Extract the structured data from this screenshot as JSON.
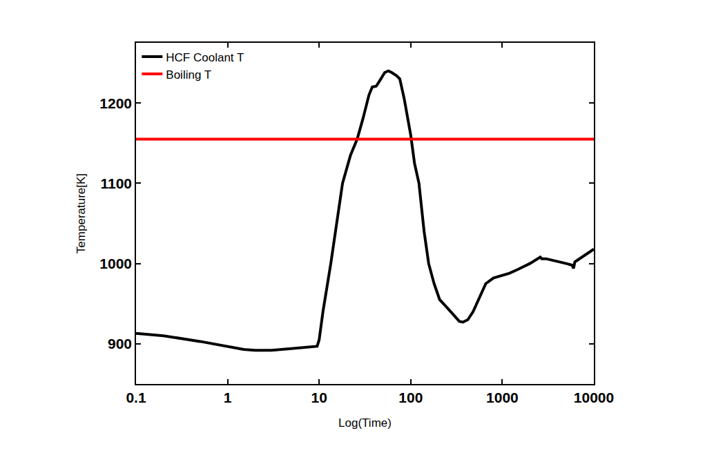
{
  "chart_data": {
    "type": "line",
    "x_label": "Log(Time)",
    "y_label": "Temperature[K]",
    "log": "x",
    "grid": false,
    "legend": "upper left",
    "xlim": [
      0.1,
      10000
    ],
    "xticks": [
      0.1,
      1,
      10,
      100,
      1000,
      10000
    ],
    "ylim": [
      850,
      1275
    ],
    "yticks": [
      900,
      1000,
      1100,
      1200
    ],
    "series": [
      {
        "name": "HCF Coolant T",
        "color": "#000000",
        "x": [
          0.1,
          0.2,
          0.5,
          1,
          1.5,
          2,
          3,
          5,
          8,
          9.5,
          10,
          11,
          13.4,
          16,
          18,
          22,
          26,
          30,
          35,
          38,
          42,
          46,
          52,
          57,
          62,
          70,
          76,
          85,
          100,
          110,
          123,
          140,
          157,
          180,
          207,
          250,
          300,
          340,
          372,
          420,
          480,
          560,
          660,
          800,
          1000,
          1200,
          1500,
          2000,
          2600,
          2700,
          3000,
          4000,
          5000,
          5800,
          6000,
          6200,
          7000,
          10000
        ],
        "values": [
          913,
          910,
          903,
          897,
          893,
          892,
          892,
          894,
          896,
          897,
          905,
          940,
          1000,
          1060,
          1100,
          1135,
          1155,
          1180,
          1210,
          1220,
          1221,
          1228,
          1238,
          1240,
          1238,
          1234,
          1230,
          1205,
          1160,
          1125,
          1100,
          1040,
          1000,
          975,
          955,
          945,
          935,
          928,
          927,
          930,
          940,
          958,
          975,
          982,
          985,
          988,
          993,
          1000,
          1008,
          1006,
          1006,
          1003,
          1000,
          998,
          994,
          1002,
          1006,
          1018
        ]
      },
      {
        "name": "Boiling T",
        "color": "#ff0000",
        "x": [
          0.1,
          10000
        ],
        "values": [
          1155,
          1155
        ]
      }
    ]
  }
}
